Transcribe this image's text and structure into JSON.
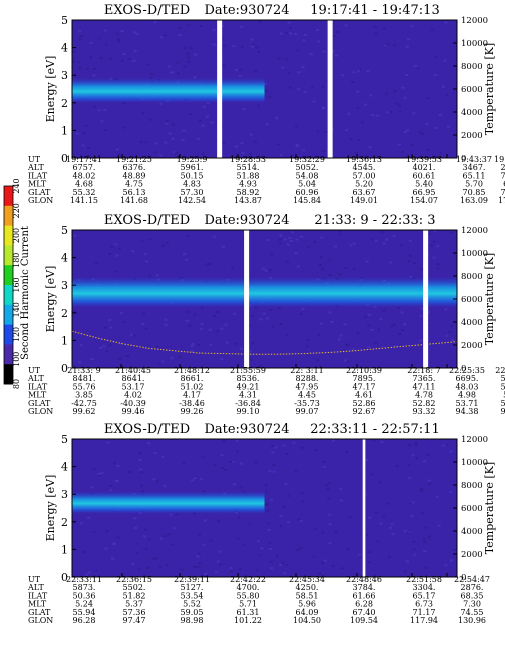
{
  "colors": {
    "background": "#ffffff",
    "plasma_background": "#3a23a8",
    "colorbar_stops": [
      "#000000",
      "#4a2aa8",
      "#1f4ae8",
      "#14a8e8",
      "#10d8c8",
      "#20d020",
      "#b8e830",
      "#e8e820",
      "#f0a020",
      "#e81818"
    ],
    "data_gap": "#ffffff",
    "temperature_trace": "#e0b030"
  },
  "colorbar": {
    "label": "Second Harmonic Current",
    "ticks": [
      "80",
      "100",
      "120",
      "140",
      "160",
      "180",
      "200",
      "220",
      "240"
    ]
  },
  "chart_data": [
    {
      "type": "heatmap",
      "title": "EXOS-D/TED",
      "date_label": "Date:930724",
      "time_range": "19:17:41 - 19:47:13",
      "ylabel": "Energy [eV]",
      "ylabel_right": "Temperature [K]",
      "ylim": [
        0,
        5
      ],
      "ylim_right": [
        0,
        12000
      ],
      "yticks": [
        "0",
        "1",
        "2",
        "3",
        "4",
        "5"
      ],
      "yticks_right": [
        "0",
        "2000",
        "4000",
        "6000",
        "8000",
        "10000",
        "12000"
      ],
      "data_gaps_fraction": [
        [
          0.377,
          0.39
        ],
        [
          0.664,
          0.677
        ]
      ],
      "plasma_band_energy_ev": [
        2.0,
        2.9
      ],
      "row_labels": [
        "UT",
        "ALT",
        "ILAT",
        "MLT",
        "GLAT",
        "GLON"
      ],
      "columns": [
        [
          "19:17:41",
          "6757.",
          "48.02",
          "4.68",
          "55.32",
          "141.15"
        ],
        [
          "19:21:25",
          "6376.",
          "48.89",
          "4.75",
          "56.13",
          "141.68"
        ],
        [
          "19:25:9",
          "5961.",
          "50.15",
          "4.83",
          "57.30",
          "142.54"
        ],
        [
          "19:28:53",
          "5514.",
          "51.88",
          "4.93",
          "58.92",
          "143.87"
        ],
        [
          "19:32:29",
          "5052.",
          "54.08",
          "5.04",
          "60.96",
          "145.84"
        ],
        [
          "19:36:13",
          "4545.",
          "57.00",
          "5.20",
          "63.67",
          "149.01"
        ],
        [
          "19:39:53",
          "4021.",
          "60.61",
          "5.40",
          "66.95",
          "154.07"
        ],
        [
          "19:43:37",
          "3467.",
          "65.11",
          "5.70",
          "70.85",
          "163.09"
        ],
        [
          "19:47:13",
          "2921.",
          "70.27",
          "6.20",
          "74.63",
          "179.49"
        ]
      ]
    },
    {
      "type": "heatmap",
      "title": "EXOS-D/TED",
      "date_label": "Date:930724",
      "time_range": "21:33: 9 - 22:33: 3",
      "ylabel": "Energy [eV]",
      "ylabel_right": "Temperature [K]",
      "ylim": [
        0,
        5
      ],
      "ylim_right": [
        0,
        12000
      ],
      "yticks": [
        "0",
        "1",
        "2",
        "3",
        "4",
        "5"
      ],
      "yticks_right": [
        "0",
        "2000",
        "4000",
        "6000",
        "8000",
        "10000",
        "12000"
      ],
      "data_gaps_fraction": [
        [
          0.447,
          0.46
        ],
        [
          0.912,
          0.925
        ]
      ],
      "plasma_band_energy_ev": [
        2.2,
        3.3
      ],
      "temperature_trace_k": [
        3200,
        2600,
        2100,
        1700,
        1500,
        1300,
        1250,
        1200,
        1200,
        1250,
        1350,
        1500,
        1700,
        1900,
        2100,
        2300
      ],
      "row_labels": [
        "UT",
        "ALT",
        "ILAT",
        "MLT",
        "GLAT",
        "GLON"
      ],
      "columns": [
        [
          "21:33: 9",
          "8481.",
          "55.76",
          "3.85",
          "-42.75",
          "99.62"
        ],
        [
          "21:40:45",
          "8641.",
          "53.17",
          "4.02",
          "-40.39",
          "99.46"
        ],
        [
          "21:48:12",
          "8661.",
          "51.02",
          "4.17",
          "-38.46",
          "99.26"
        ],
        [
          "21:55:59",
          "8536.",
          "49.21",
          "4.31",
          "-36.84",
          "99.10"
        ],
        [
          "22: 3:11",
          "8288.",
          "47.95",
          "4.45",
          "-35.73",
          "99.07"
        ],
        [
          "22:10:39",
          "7895.",
          "47.17",
          "4.61",
          "52.86",
          "92.67"
        ],
        [
          "22:18: 7",
          "7365.",
          "47.11",
          "4.78",
          "52.82",
          "93.32"
        ],
        [
          "22:25:35",
          "6695.",
          "48.03",
          "4.98",
          "53.71",
          "94.38"
        ],
        [
          "22:33: 3",
          "5888.",
          "50.31",
          "5.24",
          "55.89",
          "96.24"
        ]
      ]
    },
    {
      "type": "heatmap",
      "title": "EXOS-D/TED",
      "date_label": "Date:930724",
      "time_range": "22:33:11 - 22:57:11",
      "ylabel": "Energy [eV]",
      "ylabel_right": "Temperature [K]",
      "ylim": [
        0,
        5
      ],
      "ylim_right": [
        0,
        12000
      ],
      "yticks": [
        "0",
        "1",
        "2",
        "3",
        "4",
        "5"
      ],
      "yticks_right": [
        "0",
        "2000",
        "4000",
        "6000",
        "8000",
        "10000",
        "12000"
      ],
      "data_gaps_fraction": [
        [
          0.755,
          0.762
        ]
      ],
      "plasma_band_energy_ev": [
        2.3,
        3.1
      ],
      "row_labels": [
        "UT",
        "ALT",
        "ILAT",
        "MLT",
        "GLAT",
        "GLON"
      ],
      "columns": [
        [
          "22:33:11",
          "5873.",
          "50.36",
          "5.24",
          "55.94",
          "96.28"
        ],
        [
          "22:36:15",
          "5502.",
          "51.82",
          "5.37",
          "57.36",
          "97.47"
        ],
        [
          "22:39:11",
          "5127.",
          "53.54",
          "5.52",
          "59.05",
          "98.98"
        ],
        [
          "22:42:22",
          "4700.",
          "55.80",
          "5.71",
          "61.31",
          "101.22"
        ],
        [
          "22:45:34",
          "4250.",
          "58.51",
          "5.96",
          "64.09",
          "104.50"
        ],
        [
          "22:48:46",
          "3784.",
          "61.66",
          "6.28",
          "67.40",
          "109.54"
        ],
        [
          "22:51:58",
          "3304.",
          "65.17",
          "6.73",
          "71.17",
          "117.94"
        ],
        [
          "22:54:47",
          "2876.",
          "68.35",
          "7.30",
          "74.55",
          "130.96"
        ]
      ]
    }
  ]
}
